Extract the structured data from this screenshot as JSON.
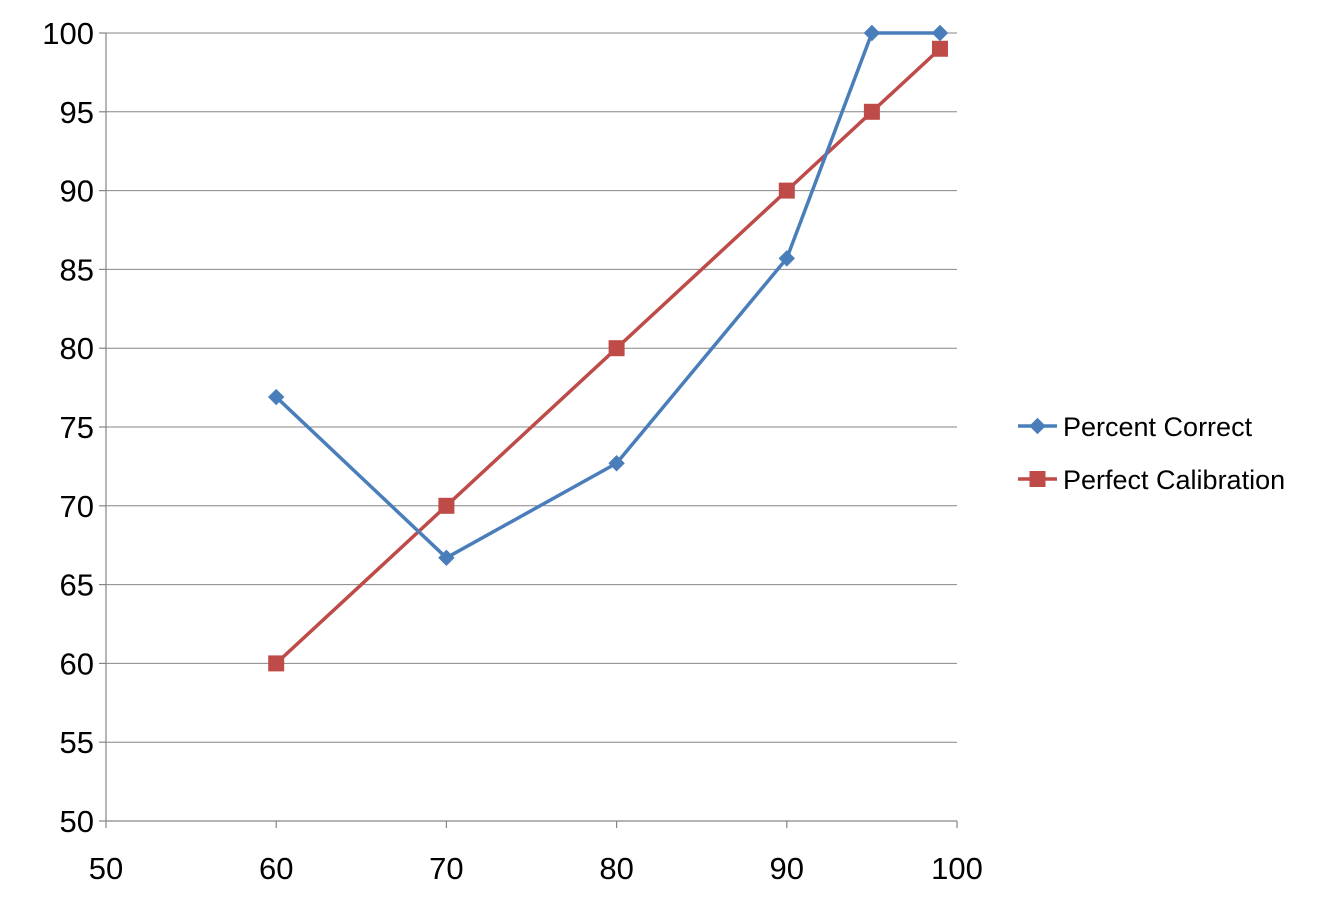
{
  "chart_data": {
    "type": "line",
    "title": "",
    "xlabel": "",
    "ylabel": "",
    "xlim": [
      50,
      100
    ],
    "ylim": [
      50,
      100
    ],
    "x_ticks": [
      50,
      60,
      70,
      80,
      90,
      100
    ],
    "y_ticks": [
      50,
      55,
      60,
      65,
      70,
      75,
      80,
      85,
      90,
      95,
      100
    ],
    "grid": "horizontal",
    "legend_position": "right",
    "series": [
      {
        "name": "Percent Correct",
        "color": "#4a7ebb",
        "marker": "diamond",
        "points": [
          {
            "x": 60,
            "y": 76.9
          },
          {
            "x": 70,
            "y": 66.7
          },
          {
            "x": 80,
            "y": 72.7
          },
          {
            "x": 90,
            "y": 85.7
          },
          {
            "x": 95,
            "y": 100
          },
          {
            "x": 99,
            "y": 100
          }
        ]
      },
      {
        "name": "Perfect Calibration",
        "color": "#be4b48",
        "marker": "square",
        "points": [
          {
            "x": 60,
            "y": 60
          },
          {
            "x": 70,
            "y": 70
          },
          {
            "x": 80,
            "y": 80
          },
          {
            "x": 90,
            "y": 90
          },
          {
            "x": 95,
            "y": 95
          },
          {
            "x": 99,
            "y": 99
          }
        ]
      }
    ]
  }
}
